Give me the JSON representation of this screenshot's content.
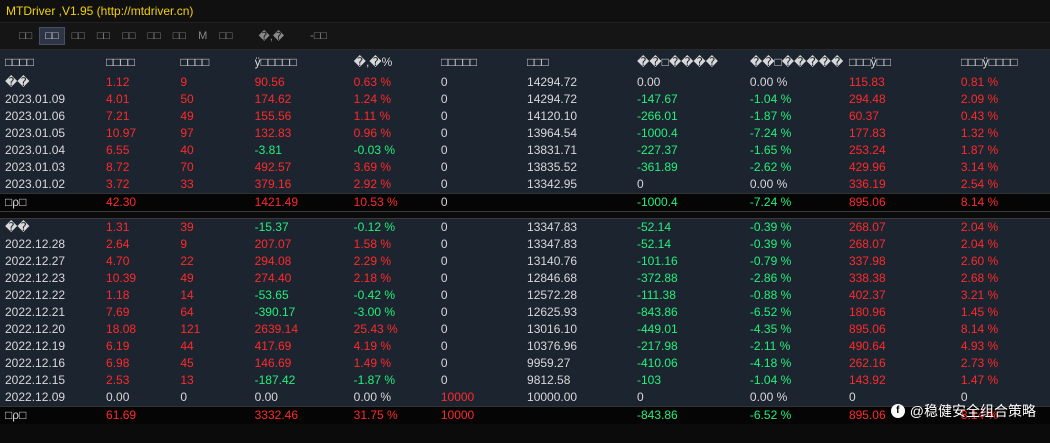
{
  "title": "MTDriver\u0001\u0001\u0001\u0001 ,V1.95 (http://mtdriver.cn)",
  "toolbar": [
    "□□",
    "□□",
    "□□",
    "□□",
    "□□",
    "□□",
    "□□",
    "M",
    "□□",
    "�,�",
    "-□□"
  ],
  "headers": [
    "□□□□",
    "□□□□",
    "□□□□",
    "ÿ□□□□□",
    "�,�%",
    "□□□□□",
    "□□□",
    "��□����",
    "��□�����",
    "□□□ÿ□□",
    "□□□ÿ□□□□"
  ],
  "top_rows": [
    [
      "��",
      "1.12",
      "9",
      "90.56",
      "0.63 %",
      "0",
      "14294.72",
      "0.00",
      "0.00 %",
      "115.83",
      "0.81 %"
    ],
    [
      "2023.01.09",
      "4.01",
      "50",
      "174.62",
      "1.24 %",
      "0",
      "14294.72",
      "-147.67",
      "-1.04 %",
      "294.48",
      "2.09 %"
    ],
    [
      "2023.01.06",
      "7.21",
      "49",
      "155.56",
      "1.11 %",
      "0",
      "14120.10",
      "-266.01",
      "-1.87 %",
      "60.37",
      "0.43 %"
    ],
    [
      "2023.01.05",
      "10.97",
      "97",
      "132.83",
      "0.96 %",
      "0",
      "13964.54",
      "-1000.4",
      "-7.24 %",
      "177.83",
      "1.32 %"
    ],
    [
      "2023.01.04",
      "6.55",
      "40",
      "-3.81",
      "-0.03 %",
      "0",
      "13831.71",
      "-227.37",
      "-1.65 %",
      "253.24",
      "1.87 %"
    ],
    [
      "2023.01.03",
      "8.72",
      "70",
      "492.57",
      "3.69 %",
      "0",
      "13835.52",
      "-361.89",
      "-2.62 %",
      "429.96",
      "3.14 %"
    ],
    [
      "2023.01.02",
      "3.72",
      "33",
      "379.16",
      "2.92 %",
      "0",
      "13342.95",
      "0",
      "0.00 %",
      "336.19",
      "2.54 %"
    ]
  ],
  "top_summary": [
    "□ρ□",
    "42.30",
    "",
    "1421.49",
    "10.53 %",
    "0",
    "",
    "-1000.4",
    "-7.24 %",
    "895.06",
    "8.14 %"
  ],
  "bottom_rows": [
    [
      "��",
      "1.31",
      "39",
      "-15.37",
      "-0.12 %",
      "0",
      "13347.83",
      "-52.14",
      "-0.39 %",
      "268.07",
      "2.04 %"
    ],
    [
      "2022.12.28",
      "2.64",
      "9",
      "207.07",
      "1.58 %",
      "0",
      "13347.83",
      "-52.14",
      "-0.39 %",
      "268.07",
      "2.04 %"
    ],
    [
      "2022.12.27",
      "4.70",
      "22",
      "294.08",
      "2.29 %",
      "0",
      "13140.76",
      "-101.16",
      "-0.79 %",
      "337.98",
      "2.60 %"
    ],
    [
      "2022.12.23",
      "10.39",
      "49",
      "274.40",
      "2.18 %",
      "0",
      "12846.68",
      "-372.88",
      "-2.86 %",
      "338.38",
      "2.68 %"
    ],
    [
      "2022.12.22",
      "1.18",
      "14",
      "-53.65",
      "-0.42 %",
      "0",
      "12572.28",
      "-111.38",
      "-0.88 %",
      "402.37",
      "3.21 %"
    ],
    [
      "2022.12.21",
      "7.69",
      "64",
      "-390.17",
      "-3.00 %",
      "0",
      "12625.93",
      "-843.86",
      "-6.52 %",
      "180.96",
      "1.45 %"
    ],
    [
      "2022.12.20",
      "18.08",
      "121",
      "2639.14",
      "25.43 %",
      "0",
      "13016.10",
      "-449.01",
      "-4.35 %",
      "895.06",
      "8.14 %"
    ],
    [
      "2022.12.19",
      "6.19",
      "44",
      "417.69",
      "4.19 %",
      "0",
      "10376.96",
      "-217.98",
      "-2.11 %",
      "490.64",
      "4.93 %"
    ],
    [
      "2022.12.16",
      "6.98",
      "45",
      "146.69",
      "1.49 %",
      "0",
      "9959.27",
      "-410.06",
      "-4.18 %",
      "262.16",
      "2.73 %"
    ],
    [
      "2022.12.15",
      "2.53",
      "13",
      "-187.42",
      "-1.87 %",
      "0",
      "9812.58",
      "-103",
      "-1.04 %",
      "143.92",
      "1.47 %"
    ],
    [
      "2022.12.09",
      "0.00",
      "0",
      "0.00",
      "0.00 %",
      "10000",
      "10000.00",
      "0",
      "0.00 %",
      "0",
      "0"
    ]
  ],
  "bottom_summary": [
    "□ρ□",
    "61.69",
    "",
    "3332.46",
    "31.75 %",
    "10000",
    "",
    "-843.86",
    "-6.52 %",
    "895.06",
    "8.14 %"
  ],
  "watermark": "@稳健安全组合策略",
  "colors": {
    "positive": "#ff2a2a",
    "negative": "#24f07a",
    "title": "#f2d200"
  }
}
